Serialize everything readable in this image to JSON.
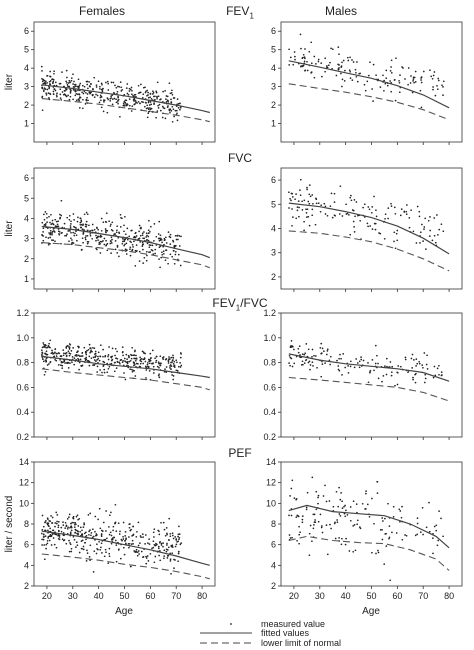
{
  "headers": {
    "females": "Females",
    "males": "Males"
  },
  "row_titles": [
    {
      "main": "FEV",
      "sub": "1",
      "tail": ""
    },
    {
      "main": "FVC",
      "sub": "",
      "tail": ""
    },
    {
      "main": "FEV",
      "sub": "1",
      "tail": "/FVC"
    },
    {
      "main": "PEF",
      "sub": "",
      "tail": ""
    }
  ],
  "ylabels": [
    "liter",
    "liter",
    "",
    "liter / second"
  ],
  "xlabel": "Age",
  "legend": {
    "measured": "measured value",
    "fitted": "fitted values",
    "lln": "lower limit of normal"
  },
  "chart_data": [
    {
      "type": "scatter",
      "row": 0,
      "sex": "female",
      "xlim": [
        15,
        85
      ],
      "ylim": [
        0,
        6.5
      ],
      "yticks": [
        1,
        2,
        3,
        4,
        5,
        6
      ],
      "xticks": [
        20,
        30,
        40,
        50,
        60,
        70,
        80
      ],
      "scatter_x_range": [
        18,
        72
      ],
      "scatter_center": [
        [
          18,
          3.05
        ],
        [
          72,
          2.0
        ]
      ],
      "scatter_sd": 0.38,
      "scatter_n": 420,
      "fitted": {
        "x": [
          18,
          30,
          40,
          50,
          60,
          70,
          80,
          83
        ],
        "y": [
          3.1,
          2.9,
          2.7,
          2.5,
          2.25,
          2.0,
          1.7,
          1.6
        ]
      },
      "lln": {
        "x": [
          18,
          30,
          40,
          50,
          60,
          70,
          80,
          83
        ],
        "y": [
          2.35,
          2.2,
          2.05,
          1.85,
          1.65,
          1.45,
          1.2,
          1.1
        ]
      }
    },
    {
      "type": "scatter",
      "row": 0,
      "sex": "male",
      "xlim": [
        15,
        85
      ],
      "ylim": [
        0,
        6.5
      ],
      "yticks": [
        1,
        2,
        3,
        4,
        5,
        6
      ],
      "xticks": [
        20,
        30,
        40,
        50,
        60,
        70,
        80
      ],
      "scatter_x_range": [
        18,
        78
      ],
      "scatter_center": [
        [
          18,
          4.4
        ],
        [
          78,
          3.0
        ]
      ],
      "scatter_sd": 0.5,
      "scatter_n": 160,
      "fitted": {
        "x": [
          18,
          30,
          40,
          50,
          60,
          70,
          80
        ],
        "y": [
          4.4,
          4.05,
          3.75,
          3.45,
          3.05,
          2.55,
          1.85
        ]
      },
      "lln": {
        "x": [
          18,
          30,
          40,
          50,
          60,
          70,
          80
        ],
        "y": [
          3.15,
          2.9,
          2.7,
          2.45,
          2.15,
          1.75,
          1.2
        ]
      }
    },
    {
      "type": "scatter",
      "row": 1,
      "sex": "female",
      "xlim": [
        15,
        85
      ],
      "ylim": [
        0.5,
        6.5
      ],
      "yticks": [
        1,
        2,
        3,
        4,
        5,
        6
      ],
      "xticks": [
        20,
        30,
        40,
        50,
        60,
        70,
        80
      ],
      "scatter_x_range": [
        18,
        72
      ],
      "scatter_center": [
        [
          18,
          3.6
        ],
        [
          72,
          2.6
        ]
      ],
      "scatter_sd": 0.45,
      "scatter_n": 420,
      "fitted": {
        "x": [
          18,
          30,
          40,
          50,
          60,
          70,
          80,
          83
        ],
        "y": [
          3.6,
          3.45,
          3.25,
          3.05,
          2.8,
          2.5,
          2.2,
          2.05
        ]
      },
      "lln": {
        "x": [
          18,
          30,
          40,
          50,
          60,
          70,
          80,
          83
        ],
        "y": [
          2.8,
          2.7,
          2.55,
          2.4,
          2.2,
          1.95,
          1.7,
          1.55
        ]
      }
    },
    {
      "type": "scatter",
      "row": 1,
      "sex": "male",
      "xlim": [
        15,
        85
      ],
      "ylim": [
        1.5,
        6.5
      ],
      "yticks": [
        2,
        3,
        4,
        5,
        6
      ],
      "xticks": [
        20,
        30,
        40,
        50,
        60,
        70,
        80
      ],
      "scatter_x_range": [
        18,
        78
      ],
      "scatter_center": [
        [
          18,
          5.05
        ],
        [
          78,
          3.8
        ]
      ],
      "scatter_sd": 0.5,
      "scatter_n": 160,
      "fitted": {
        "x": [
          18,
          30,
          40,
          50,
          60,
          70,
          80
        ],
        "y": [
          5.05,
          4.9,
          4.7,
          4.45,
          4.1,
          3.6,
          2.95
        ]
      },
      "lln": {
        "x": [
          18,
          30,
          40,
          50,
          60,
          70,
          80
        ],
        "y": [
          3.9,
          3.8,
          3.65,
          3.45,
          3.15,
          2.75,
          2.25
        ]
      }
    },
    {
      "type": "scatter",
      "row": 2,
      "sex": "female",
      "xlim": [
        15,
        85
      ],
      "ylim": [
        0.2,
        1.2
      ],
      "yticks": [
        0.2,
        0.4,
        0.6,
        0.8,
        1.0,
        1.2
      ],
      "xticks": [
        20,
        30,
        40,
        50,
        60,
        70,
        80
      ],
      "scatter_x_range": [
        18,
        72
      ],
      "scatter_center": [
        [
          18,
          0.87
        ],
        [
          72,
          0.77
        ]
      ],
      "scatter_sd": 0.05,
      "scatter_n": 420,
      "fitted": {
        "x": [
          18,
          30,
          40,
          50,
          60,
          70,
          80,
          83
        ],
        "y": [
          0.85,
          0.82,
          0.79,
          0.77,
          0.75,
          0.72,
          0.69,
          0.68
        ]
      },
      "lln": {
        "x": [
          18,
          30,
          40,
          50,
          60,
          70,
          80,
          83
        ],
        "y": [
          0.75,
          0.72,
          0.7,
          0.68,
          0.66,
          0.63,
          0.6,
          0.58
        ]
      }
    },
    {
      "type": "scatter",
      "row": 2,
      "sex": "male",
      "xlim": [
        15,
        85
      ],
      "ylim": [
        0.2,
        1.2
      ],
      "yticks": [
        0.2,
        0.4,
        0.6,
        0.8,
        1.0,
        1.2
      ],
      "xticks": [
        20,
        30,
        40,
        50,
        60,
        70,
        80
      ],
      "scatter_x_range": [
        18,
        78
      ],
      "scatter_center": [
        [
          18,
          0.87
        ],
        [
          78,
          0.7
        ]
      ],
      "scatter_sd": 0.06,
      "scatter_n": 160,
      "fitted": {
        "x": [
          18,
          30,
          40,
          50,
          60,
          70,
          80
        ],
        "y": [
          0.87,
          0.82,
          0.79,
          0.77,
          0.75,
          0.72,
          0.65
        ]
      },
      "lln": {
        "x": [
          18,
          30,
          40,
          50,
          60,
          70,
          80
        ],
        "y": [
          0.68,
          0.66,
          0.64,
          0.62,
          0.6,
          0.56,
          0.49
        ]
      }
    },
    {
      "type": "scatter",
      "row": 3,
      "sex": "female",
      "xlim": [
        15,
        85
      ],
      "ylim": [
        2,
        14
      ],
      "yticks": [
        2,
        4,
        6,
        8,
        10,
        12,
        14
      ],
      "xticks": [
        20,
        30,
        40,
        50,
        60,
        70,
        80
      ],
      "scatter_x_range": [
        18,
        72
      ],
      "scatter_center": [
        [
          18,
          7.3
        ],
        [
          72,
          5.6
        ]
      ],
      "scatter_sd": 1.1,
      "scatter_n": 420,
      "fitted": {
        "x": [
          18,
          30,
          40,
          50,
          60,
          70,
          80,
          83
        ],
        "y": [
          7.3,
          6.9,
          6.5,
          6.0,
          5.5,
          4.9,
          4.2,
          4.0
        ]
      },
      "lln": {
        "x": [
          18,
          30,
          40,
          50,
          60,
          70,
          80,
          83
        ],
        "y": [
          5.1,
          4.8,
          4.5,
          4.1,
          3.8,
          3.4,
          2.9,
          2.7
        ]
      }
    },
    {
      "type": "scatter",
      "row": 3,
      "sex": "male",
      "xlim": [
        15,
        85
      ],
      "ylim": [
        2,
        14
      ],
      "yticks": [
        2,
        4,
        6,
        8,
        10,
        12,
        14
      ],
      "xticks": [
        20,
        30,
        40,
        50,
        60,
        70,
        80
      ],
      "scatter_x_range": [
        18,
        78
      ],
      "scatter_center": [
        [
          18,
          9.5
        ],
        [
          78,
          7.0
        ]
      ],
      "scatter_sd": 1.6,
      "scatter_n": 170,
      "fitted": {
        "x": [
          18,
          25,
          35,
          45,
          55,
          65,
          75,
          80
        ],
        "y": [
          9.3,
          9.8,
          9.2,
          9.0,
          8.8,
          8.0,
          6.8,
          5.7
        ]
      },
      "lln": {
        "x": [
          18,
          25,
          35,
          45,
          55,
          65,
          75,
          80
        ],
        "y": [
          6.4,
          6.8,
          6.4,
          6.2,
          6.1,
          5.5,
          4.6,
          3.5
        ]
      }
    }
  ]
}
